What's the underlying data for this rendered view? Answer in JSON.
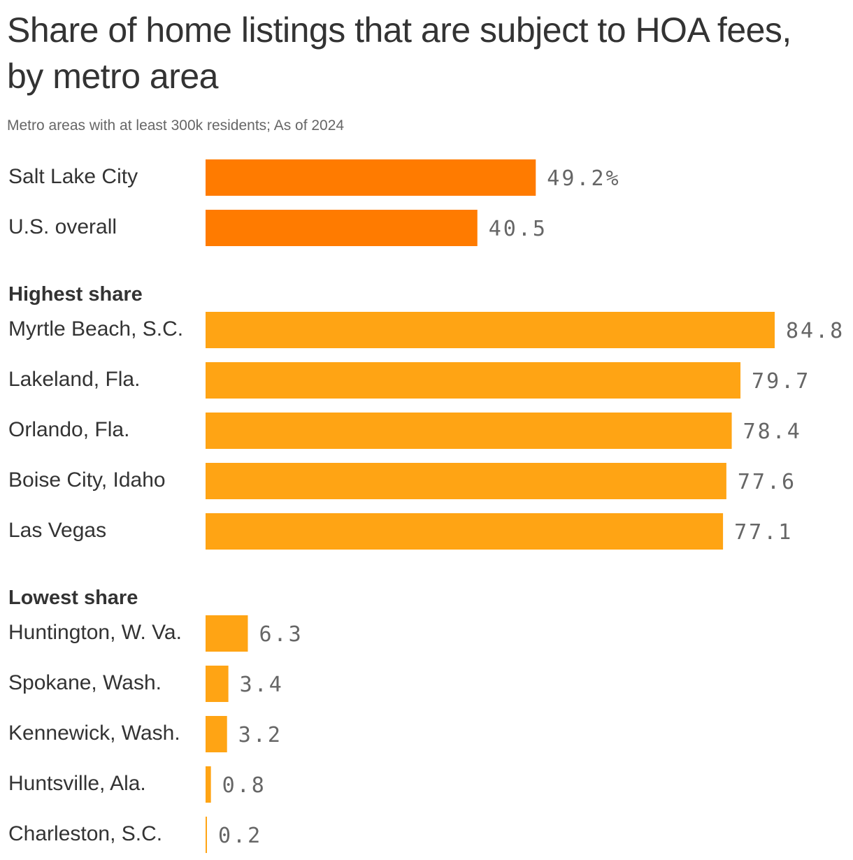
{
  "chart_data": {
    "type": "bar",
    "orientation": "horizontal",
    "title": "Share of home listings that are subject to HOA fees, by metro area",
    "subtitle": "Metro areas with at least 300k residents; As of 2024",
    "xlim": [
      0,
      84.8
    ],
    "grid": false,
    "legend": "none",
    "colors": {
      "highlight": "#ff7b00",
      "default": "#ffa414",
      "label": "#333333",
      "value": "#666666"
    },
    "groups": [
      {
        "name": "",
        "color": "#ff7b00",
        "items": [
          {
            "label": "Salt Lake City",
            "value": 49.2,
            "value_label": "49.2%"
          },
          {
            "label": "U.S. overall",
            "value": 40.5,
            "value_label": "40.5"
          }
        ]
      },
      {
        "name": "Highest share",
        "color": "#ffa414",
        "items": [
          {
            "label": "Myrtle Beach, S.C.",
            "value": 84.8,
            "value_label": "84.8"
          },
          {
            "label": "Lakeland, Fla.",
            "value": 79.7,
            "value_label": "79.7"
          },
          {
            "label": "Orlando, Fla.",
            "value": 78.4,
            "value_label": "78.4"
          },
          {
            "label": "Boise City, Idaho",
            "value": 77.6,
            "value_label": "77.6"
          },
          {
            "label": "Las Vegas",
            "value": 77.1,
            "value_label": "77.1"
          }
        ]
      },
      {
        "name": "Lowest share",
        "color": "#ffa414",
        "items": [
          {
            "label": "Huntington, W. Va.",
            "value": 6.3,
            "value_label": "6.3"
          },
          {
            "label": "Spokane, Wash.",
            "value": 3.4,
            "value_label": "3.4"
          },
          {
            "label": "Kennewick, Wash.",
            "value": 3.2,
            "value_label": "3.2"
          },
          {
            "label": "Huntsville, Ala.",
            "value": 0.8,
            "value_label": "0.8"
          },
          {
            "label": "Charleston, S.C.",
            "value": 0.2,
            "value_label": "0.2"
          }
        ]
      }
    ]
  }
}
